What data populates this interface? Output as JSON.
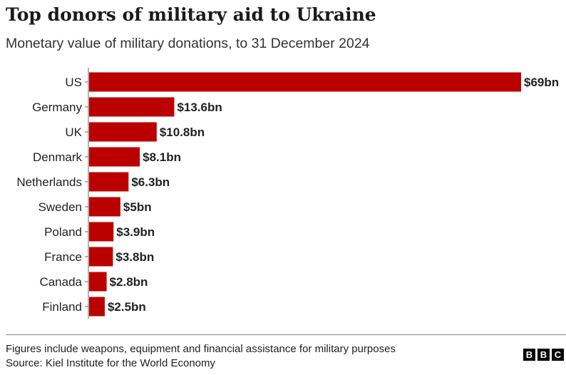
{
  "title": "Top donors of military aid to Ukraine",
  "subtitle": "Monetary value of military donations, to 31 December 2024",
  "footer": {
    "note": "Figures include weapons, equipment and financial assistance for military purposes",
    "source": "Source: Kiel Institute for the World Economy"
  },
  "logo": {
    "letters": [
      "B",
      "B",
      "C"
    ]
  },
  "colors": {
    "bar": "#bb0000",
    "axis": "#666666",
    "text": "#222222"
  },
  "chart_data": {
    "type": "bar",
    "orientation": "horizontal",
    "title": "Top donors of military aid to Ukraine",
    "subtitle": "Monetary value of military donations, to 31 December 2024",
    "categories": [
      "US",
      "Germany",
      "UK",
      "Denmark",
      "Netherlands",
      "Sweden",
      "Poland",
      "France",
      "Canada",
      "Finland"
    ],
    "values": [
      69,
      13.6,
      10.8,
      8.1,
      6.3,
      5,
      3.9,
      3.8,
      2.8,
      2.5
    ],
    "value_labels": [
      "$69bn",
      "$13.6bn",
      "$10.8bn",
      "$8.1bn",
      "$6.3bn",
      "$5bn",
      "$3.9bn",
      "$3.8bn",
      "$2.8bn",
      "$2.5bn"
    ],
    "unit": "bn",
    "xlim": [
      0,
      69
    ],
    "grid": false,
    "legend": "none"
  }
}
